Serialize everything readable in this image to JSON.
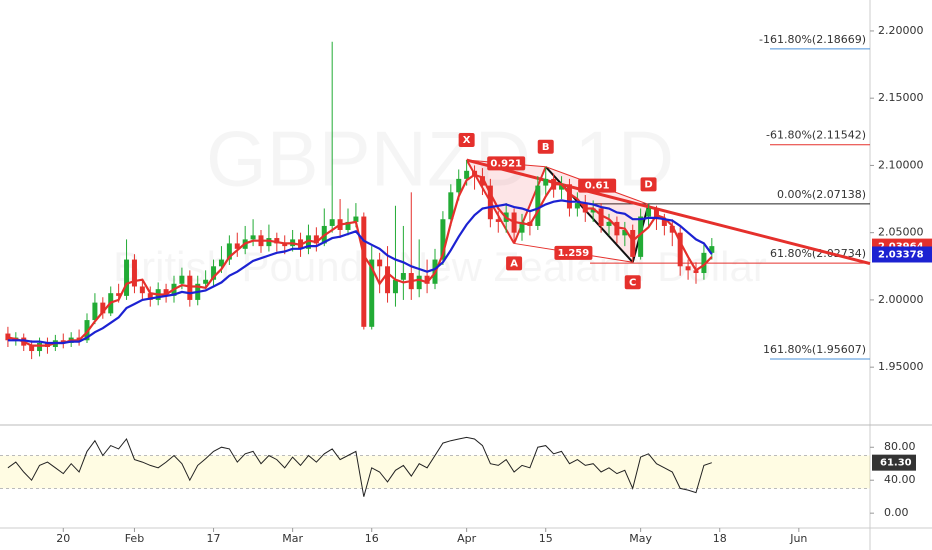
{
  "chart_data": [
    {
      "type": "candlestick",
      "title": "GBPNZD, 1D",
      "subtitle": "British Pound / New Zealand Dollar",
      "xlim": [
        -1,
        109
      ],
      "xticks": [
        {
          "value": 7,
          "label": "20"
        },
        {
          "value": 16,
          "label": "Feb"
        },
        {
          "value": 26,
          "label": "17"
        },
        {
          "value": 36,
          "label": "Mar"
        },
        {
          "value": 46,
          "label": "16"
        },
        {
          "value": 58,
          "label": "Apr"
        },
        {
          "value": 68,
          "label": "15"
        },
        {
          "value": 80,
          "label": "May"
        },
        {
          "value": 90,
          "label": "18"
        },
        {
          "value": 100,
          "label": "Jun"
        }
      ],
      "ylim": [
        1.907,
        2.223
      ],
      "yticks": [
        {
          "value": 2.2,
          "label": "2.20000"
        },
        {
          "value": 2.15,
          "label": "2.15000"
        },
        {
          "value": 2.1,
          "label": "2.10000"
        },
        {
          "value": 2.05,
          "label": "2.05000"
        },
        {
          "value": 2.0,
          "label": "2.00000"
        },
        {
          "value": 1.95,
          "label": "1.95000"
        }
      ],
      "up_color": "#22ab35",
      "down_color": "#e5302c",
      "open": [
        1.975,
        1.97,
        1.972,
        1.966,
        1.962,
        1.968,
        1.965,
        1.97,
        1.968,
        1.972,
        1.97,
        1.985,
        1.998,
        1.99,
        2.005,
        2.003,
        2.03,
        2.01,
        2.005,
        2.0,
        2.008,
        2.003,
        2.012,
        2.018,
        2.0,
        2.012,
        2.015,
        2.025,
        2.03,
        2.042,
        2.038,
        2.045,
        2.048,
        2.04,
        2.046,
        2.042,
        2.04,
        2.045,
        2.038,
        2.048,
        2.042,
        2.055,
        2.06,
        2.052,
        2.058,
        2.062,
        1.98,
        2.03,
        2.025,
        2.005,
        2.015,
        2.02,
        2.008,
        2.018,
        2.012,
        2.03,
        2.06,
        2.08,
        2.09,
        2.096,
        2.092,
        2.085,
        2.06,
        2.058,
        2.065,
        2.05,
        2.058,
        2.055,
        2.085,
        2.09,
        2.082,
        2.086,
        2.068,
        2.072,
        2.065,
        2.068,
        2.055,
        2.058,
        2.048,
        2.052,
        2.032,
        2.062,
        2.068,
        2.06,
        2.055,
        2.05,
        2.025,
        2.022,
        2.02,
        2.035
      ],
      "high": [
        1.98,
        1.976,
        1.975,
        1.97,
        1.972,
        1.972,
        1.974,
        1.975,
        1.976,
        1.978,
        1.99,
        2.005,
        2.002,
        2.01,
        2.012,
        2.045,
        2.034,
        2.015,
        2.01,
        2.013,
        2.012,
        2.018,
        2.024,
        2.022,
        2.018,
        2.022,
        2.03,
        2.04,
        2.048,
        2.05,
        2.055,
        2.06,
        2.052,
        2.056,
        2.05,
        2.048,
        2.052,
        2.05,
        2.056,
        2.054,
        2.068,
        2.192,
        2.075,
        2.068,
        2.072,
        2.065,
        2.04,
        2.035,
        2.04,
        2.07,
        2.055,
        2.08,
        2.045,
        2.03,
        2.038,
        2.066,
        2.086,
        2.097,
        2.104,
        2.1,
        2.098,
        2.09,
        2.066,
        2.072,
        2.068,
        2.064,
        2.066,
        2.092,
        2.099,
        2.094,
        2.092,
        2.09,
        2.08,
        2.078,
        2.074,
        2.072,
        2.064,
        2.062,
        2.058,
        2.056,
        2.068,
        2.071,
        2.07,
        2.064,
        2.06,
        2.054,
        2.03,
        2.028,
        2.042,
        2.046
      ],
      "low": [
        1.965,
        1.966,
        1.962,
        1.956,
        1.958,
        1.96,
        1.962,
        1.964,
        1.965,
        1.966,
        1.968,
        1.982,
        1.986,
        1.988,
        1.998,
        2.0,
        2.005,
        2.0,
        1.995,
        1.996,
        1.998,
        1.998,
        2.008,
        1.995,
        1.996,
        2.008,
        2.01,
        2.02,
        2.026,
        2.032,
        2.034,
        2.04,
        2.035,
        2.036,
        2.036,
        2.034,
        2.036,
        2.032,
        2.034,
        2.036,
        2.04,
        2.05,
        2.046,
        2.048,
        2.054,
        1.978,
        1.978,
        2.005,
        1.998,
        1.995,
        2.0,
        2.0,
        2.002,
        2.005,
        2.008,
        2.026,
        2.055,
        2.074,
        2.085,
        2.082,
        2.078,
        2.054,
        2.05,
        2.05,
        2.042,
        2.044,
        2.048,
        2.052,
        2.078,
        2.076,
        2.075,
        2.062,
        2.062,
        2.058,
        2.058,
        2.05,
        2.048,
        2.042,
        2.04,
        2.028,
        2.03,
        2.055,
        2.052,
        2.048,
        2.04,
        2.018,
        2.015,
        2.012,
        2.015,
        2.03
      ],
      "close": [
        1.97,
        1.972,
        1.966,
        1.962,
        1.968,
        1.965,
        1.97,
        1.968,
        1.972,
        1.97,
        1.985,
        1.998,
        1.99,
        2.005,
        2.003,
        2.03,
        2.01,
        2.005,
        2.0,
        2.008,
        2.003,
        2.012,
        2.018,
        2.0,
        2.012,
        2.015,
        2.025,
        2.03,
        2.042,
        2.038,
        2.045,
        2.048,
        2.04,
        2.046,
        2.042,
        2.04,
        2.045,
        2.038,
        2.048,
        2.042,
        2.055,
        2.06,
        2.052,
        2.058,
        2.062,
        1.98,
        2.03,
        2.025,
        2.005,
        2.015,
        2.02,
        2.008,
        2.018,
        2.012,
        2.03,
        2.06,
        2.08,
        2.09,
        2.096,
        2.092,
        2.085,
        2.06,
        2.058,
        2.065,
        2.05,
        2.058,
        2.055,
        2.085,
        2.09,
        2.082,
        2.086,
        2.068,
        2.072,
        2.065,
        2.068,
        2.055,
        2.058,
        2.048,
        2.052,
        2.032,
        2.062,
        2.068,
        2.06,
        2.055,
        2.05,
        2.025,
        2.022,
        2.02,
        2.035,
        2.04
      ],
      "series": [
        {
          "color": "#e5302c",
          "values": [
            1.972,
            1.971,
            1.969,
            1.966,
            1.966,
            1.966,
            1.968,
            1.968,
            1.97,
            1.97,
            1.976,
            1.984,
            1.991,
            1.998,
            2.0,
            2.012,
            2.014,
            2.015,
            2.005,
            2.004,
            2.004,
            2.008,
            2.011,
            2.01,
            2.01,
            2.009,
            2.017,
            2.023,
            2.032,
            2.037,
            2.042,
            2.044,
            2.044,
            2.044,
            2.043,
            2.042,
            2.042,
            2.041,
            2.044,
            2.043,
            2.048,
            2.052,
            2.056,
            2.057,
            2.058,
            2.033,
            2.024,
            2.012,
            2.02,
            2.015,
            2.013,
            2.014,
            2.015,
            2.013,
            2.02,
            2.034,
            2.057,
            2.077,
            2.089,
            2.093,
            2.091,
            2.079,
            2.068,
            2.061,
            2.058,
            2.057,
            2.056,
            2.066,
            2.077,
            2.086,
            2.086,
            2.079,
            2.075,
            2.068,
            2.068,
            2.063,
            2.06,
            2.054,
            2.053,
            2.044,
            2.049,
            2.054,
            2.063,
            2.061,
            2.055,
            2.043,
            2.032,
            2.022,
            2.026,
            2.032
          ]
        },
        {
          "color": "#1c22d2",
          "values": [
            1.97,
            1.97,
            1.97,
            1.969,
            1.969,
            1.968,
            1.968,
            1.968,
            1.969,
            1.969,
            1.972,
            1.976,
            1.979,
            1.983,
            1.987,
            1.994,
            1.997,
            2.0,
            2.001,
            2.002,
            2.003,
            2.004,
            2.006,
            2.005,
            2.006,
            2.007,
            2.01,
            2.013,
            2.018,
            2.021,
            2.025,
            2.029,
            2.031,
            2.033,
            2.035,
            2.036,
            2.038,
            2.038,
            2.04,
            2.04,
            2.043,
            2.046,
            2.047,
            2.049,
            2.051,
            2.044,
            2.041,
            2.038,
            2.033,
            2.03,
            2.028,
            2.025,
            2.023,
            2.021,
            2.023,
            2.028,
            2.037,
            2.047,
            2.056,
            2.063,
            2.068,
            2.069,
            2.07,
            2.071,
            2.069,
            2.068,
            2.066,
            2.068,
            2.071,
            2.073,
            2.074,
            2.073,
            2.073,
            2.072,
            2.071,
            2.069,
            2.068,
            2.065,
            2.064,
            2.06,
            2.06,
            2.061,
            2.061,
            2.06,
            2.059,
            2.055,
            2.05,
            2.045,
            2.042,
            2.034
          ]
        }
      ],
      "price_labels": [
        {
          "value": 2.03964,
          "color": "#e5302c"
        },
        {
          "value": 2.03378,
          "color": "#1c22d2"
        }
      ],
      "fib_levels": [
        {
          "label": "-161.80%(2.18669)",
          "value": 2.18669,
          "color": "#4a90d9"
        },
        {
          "label": "-61.80%(2.11542)",
          "value": 2.11542,
          "color": "#e5302c"
        },
        {
          "label": "0.00%(2.07138)",
          "value": 2.07138,
          "color": "#222222"
        },
        {
          "label": "61.80%(2.02734)",
          "value": 2.02734,
          "color": "#e5302c"
        },
        {
          "label": "161.80%(1.95607)",
          "value": 1.95607,
          "color": "#4a90d9"
        }
      ],
      "pattern": {
        "points": [
          {
            "label": "X",
            "x": 58,
            "y": 2.104
          },
          {
            "label": "A",
            "x": 64,
            "y": 2.042
          },
          {
            "label": "B",
            "x": 68,
            "y": 2.099
          },
          {
            "label": "C",
            "x": 79,
            "y": 2.028
          },
          {
            "label": "D",
            "x": 81,
            "y": 2.071
          }
        ],
        "ratios": [
          "0.921",
          "1.259",
          "0.61"
        ]
      },
      "trendline": {
        "x": [
          58,
          109
        ],
        "y": [
          2.104,
          2.027
        ]
      }
    },
    {
      "type": "line",
      "ylim": [
        -18,
        107
      ],
      "yticks": [
        {
          "value": 80,
          "label": "80.00"
        },
        {
          "value": 40,
          "label": "40.00"
        },
        {
          "value": 0,
          "label": "0.00"
        }
      ],
      "band": [
        30,
        70
      ],
      "color": "#222222",
      "last_label": "61.30",
      "values": [
        55,
        62,
        50,
        40,
        58,
        62,
        55,
        48,
        60,
        50,
        75,
        88,
        70,
        82,
        78,
        90,
        65,
        62,
        58,
        55,
        62,
        70,
        60,
        40,
        58,
        66,
        75,
        80,
        78,
        62,
        72,
        75,
        60,
        70,
        65,
        55,
        68,
        58,
        70,
        62,
        72,
        78,
        65,
        70,
        75,
        20,
        55,
        50,
        38,
        52,
        58,
        45,
        60,
        55,
        70,
        85,
        88,
        90,
        92,
        90,
        82,
        60,
        58,
        65,
        50,
        58,
        55,
        80,
        82,
        72,
        75,
        60,
        65,
        58,
        60,
        50,
        55,
        48,
        52,
        30,
        68,
        72,
        60,
        55,
        50,
        30,
        28,
        25,
        58,
        61.3
      ]
    }
  ]
}
